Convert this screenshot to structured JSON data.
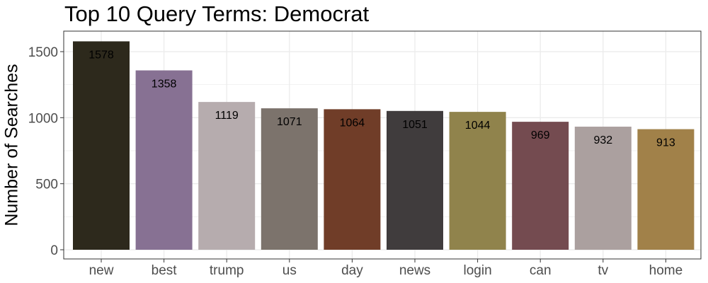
{
  "chart_data": {
    "type": "bar",
    "title": "Top 10 Query Terms: Democrat",
    "xlabel": "",
    "ylabel": "Number of Searches",
    "categories": [
      "new",
      "best",
      "trump",
      "us",
      "day",
      "news",
      "login",
      "can",
      "tv",
      "home"
    ],
    "values": [
      1578,
      1358,
      1119,
      1071,
      1064,
      1051,
      1044,
      969,
      932,
      913
    ],
    "data_labels": [
      "1578",
      "1358",
      "1119",
      "1071",
      "1064",
      "1051",
      "1044",
      "969",
      "932",
      "913"
    ],
    "ylim": [
      0,
      1650
    ],
    "yticks": [
      0,
      500,
      1000,
      1500
    ],
    "ytick_labels": [
      "0",
      "500",
      "1000",
      "1500"
    ],
    "grid": true,
    "legend": "none",
    "colors": [
      "#2d291c",
      "#877193",
      "#b6acae",
      "#7c736c",
      "#703d28",
      "#403c3d",
      "#90834c",
      "#744b50",
      "#aba09f",
      "#a18149"
    ],
    "panel_border_color": "#333333",
    "grid_color": "#ebebeb"
  }
}
